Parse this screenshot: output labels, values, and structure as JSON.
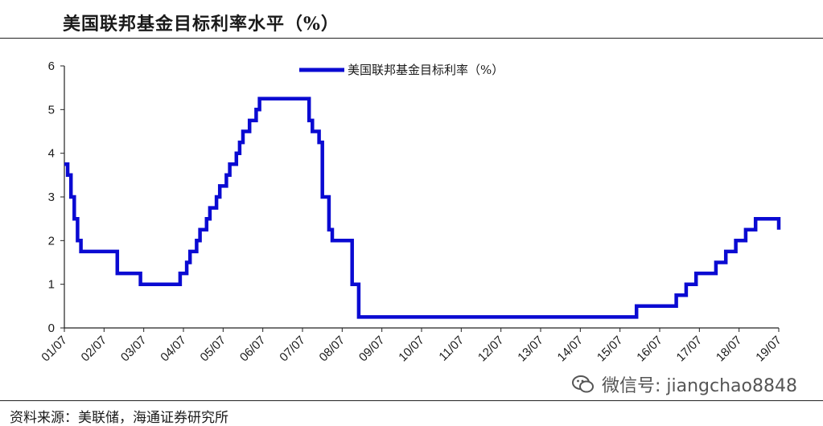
{
  "header": {
    "title": "美国联邦基金目标利率水平（%）"
  },
  "footer": {
    "source": "资料来源：美联储，海通证券研究所"
  },
  "watermark": {
    "text": "微信号: jiangchao8848",
    "icon": "wechat-icon"
  },
  "colors": {
    "series": "#0a0ad2",
    "axis": "#222222",
    "text": "#1a1a1a"
  },
  "chart_data": {
    "type": "line",
    "title": "",
    "xlabel": "",
    "ylabel": "",
    "ylim": [
      0,
      6
    ],
    "xlim": [
      2001.5,
      2019.5
    ],
    "grid": false,
    "legend_position": "top-center",
    "yticks": [
      "0",
      "1",
      "2",
      "3",
      "4",
      "5",
      "6"
    ],
    "xticks": [
      "01/07",
      "02/07",
      "03/07",
      "04/07",
      "05/07",
      "06/07",
      "07/07",
      "08/07",
      "09/07",
      "10/07",
      "11/07",
      "12/07",
      "13/07",
      "14/07",
      "15/07",
      "16/07",
      "17/07",
      "18/07",
      "19/07"
    ],
    "series": [
      {
        "name": "美国联邦基金目标利率（%）",
        "color": "#0a0ad2",
        "points": [
          [
            "2001-07",
            3.75
          ],
          [
            "2001-08",
            3.5
          ],
          [
            "2001-09",
            3.0
          ],
          [
            "2001-10",
            2.5
          ],
          [
            "2001-11",
            2.0
          ],
          [
            "2001-12",
            1.75
          ],
          [
            "2002-11",
            1.25
          ],
          [
            "2003-06",
            1.0
          ],
          [
            "2004-06",
            1.25
          ],
          [
            "2004-08",
            1.5
          ],
          [
            "2004-09",
            1.75
          ],
          [
            "2004-11",
            2.0
          ],
          [
            "2004-12",
            2.25
          ],
          [
            "2005-02",
            2.5
          ],
          [
            "2005-03",
            2.75
          ],
          [
            "2005-05",
            3.0
          ],
          [
            "2005-06",
            3.25
          ],
          [
            "2005-08",
            3.5
          ],
          [
            "2005-09",
            3.75
          ],
          [
            "2005-11",
            4.0
          ],
          [
            "2005-12",
            4.25
          ],
          [
            "2006-01",
            4.5
          ],
          [
            "2006-03",
            4.75
          ],
          [
            "2006-05",
            5.0
          ],
          [
            "2006-06",
            5.25
          ],
          [
            "2007-09",
            4.75
          ],
          [
            "2007-10",
            4.5
          ],
          [
            "2007-12",
            4.25
          ],
          [
            "2008-01",
            3.5
          ],
          [
            "2008-01",
            3.0
          ],
          [
            "2008-03",
            2.25
          ],
          [
            "2008-04",
            2.0
          ],
          [
            "2008-10",
            1.5
          ],
          [
            "2008-10",
            1.0
          ],
          [
            "2008-12",
            0.25
          ],
          [
            "2015-12",
            0.5
          ],
          [
            "2016-12",
            0.75
          ],
          [
            "2017-03",
            1.0
          ],
          [
            "2017-06",
            1.25
          ],
          [
            "2017-12",
            1.5
          ],
          [
            "2018-03",
            1.75
          ],
          [
            "2018-06",
            2.0
          ],
          [
            "2018-09",
            2.25
          ],
          [
            "2018-12",
            2.5
          ],
          [
            "2019-07",
            2.25
          ]
        ],
        "end": "2019-07"
      }
    ]
  }
}
